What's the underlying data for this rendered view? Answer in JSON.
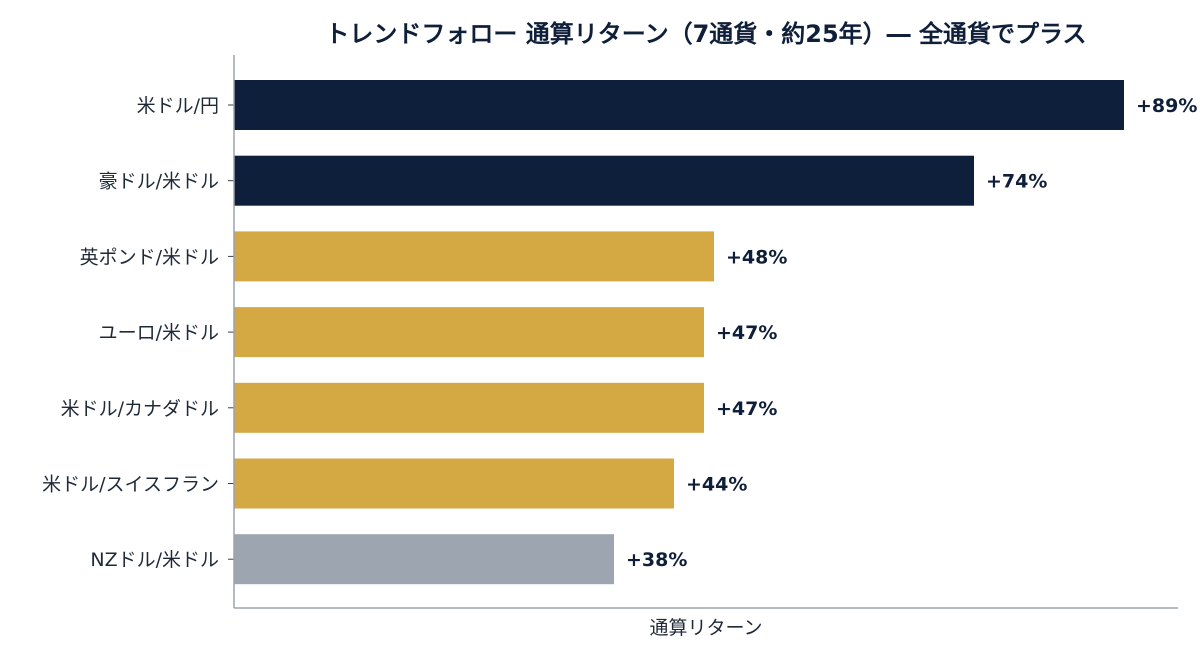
{
  "chart_data": {
    "type": "bar",
    "orientation": "horizontal",
    "title": "トレンドフォロー 通算リターン（7通貨・約25年）― 全通貨でプラス",
    "xlabel": "通算リターン",
    "ylabel": "",
    "categories": [
      "米ドル/円",
      "豪ドル/米ドル",
      "英ポンド/米ドル",
      "ユーロ/米ドル",
      "米ドル/カナダドル",
      "米ドル/スイスフラン",
      "NZドル/米ドル"
    ],
    "values": [
      89,
      74,
      48,
      47,
      47,
      44,
      38
    ],
    "value_labels": [
      "+89%",
      "+74%",
      "+48%",
      "+47%",
      "+47%",
      "+44%",
      "+38%"
    ],
    "bar_colors": [
      "#0e1f3b",
      "#0e1f3b",
      "#d4a843",
      "#d4a843",
      "#d4a843",
      "#d4a843",
      "#9ca5b0"
    ],
    "xlim": [
      0,
      100
    ],
    "x_ticks_visible": false,
    "grid": false
  }
}
